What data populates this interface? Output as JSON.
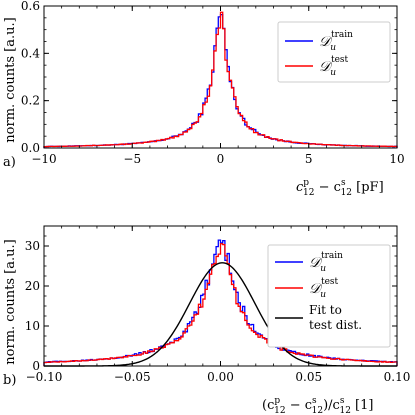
{
  "chart_data": [
    {
      "type": "histogram",
      "panel_label": "a)",
      "ylabel": "norm. counts [a.u.]",
      "xlabel": {
        "pre": "c",
        "sup1": "p",
        "sub1": "12",
        "mid": " − c",
        "sup2": "s",
        "sub2": "12",
        "post": " [pF]"
      },
      "xlim": [
        -10,
        10
      ],
      "ylim": [
        0,
        0.6
      ],
      "xticks": [
        -10,
        -5,
        0,
        5,
        10
      ],
      "xtick_labels": [
        "−10",
        "−5",
        "0",
        "5",
        "10"
      ],
      "yticks": [
        0,
        0.2,
        0.4,
        0.6
      ],
      "ytick_labels": [
        "0.0",
        "0.2",
        "0.4",
        "0.6"
      ],
      "legend_position": "upper-right",
      "series": [
        {
          "name_base": "𝒟",
          "name_sub": "u",
          "name_sup": "train",
          "color": "#0000ff",
          "center": 0,
          "peak": 0.58,
          "width": 0.55
        },
        {
          "name_base": "𝒟",
          "name_sub": "u",
          "name_sup": "test",
          "color": "#ff0000",
          "center": 0,
          "peak": 0.56,
          "width": 0.56
        }
      ]
    },
    {
      "type": "histogram",
      "panel_label": "b)",
      "ylabel": "norm. counts [a.u.]",
      "xlabel": {
        "pre": "(c",
        "sup1": "p",
        "sub1": "12",
        "mid": " − c",
        "sup2": "s",
        "sub2": "12",
        "post2": ")/c",
        "sup3": "s",
        "sub3": "12",
        "post": " [1]"
      },
      "xlim": [
        -0.1,
        0.1
      ],
      "ylim": [
        0,
        35
      ],
      "xticks": [
        -0.1,
        -0.05,
        0,
        0.05,
        0.1
      ],
      "xtick_labels": [
        "−0.10",
        "−0.05",
        "0.00",
        "0.05",
        "0.10"
      ],
      "yticks": [
        0,
        10,
        20,
        30
      ],
      "ytick_labels": [
        "0",
        "10",
        "20",
        "30"
      ],
      "legend_position": "upper-right",
      "series": [
        {
          "name_base": "𝒟",
          "name_sub": "u",
          "name_sup": "train",
          "color": "#0000ff",
          "center": 0,
          "peak": 33,
          "width": 0.0105
        },
        {
          "name_base": "𝒟",
          "name_sub": "u",
          "name_sup": "test",
          "color": "#ff0000",
          "center": 0,
          "peak": 31,
          "width": 0.0107
        }
      ],
      "fit": {
        "name_line1": "Fit to",
        "name_line2": "test dist.",
        "color": "#000000",
        "mean": 0.001,
        "sigma": 0.0185,
        "amplitude": 25.8
      }
    }
  ]
}
